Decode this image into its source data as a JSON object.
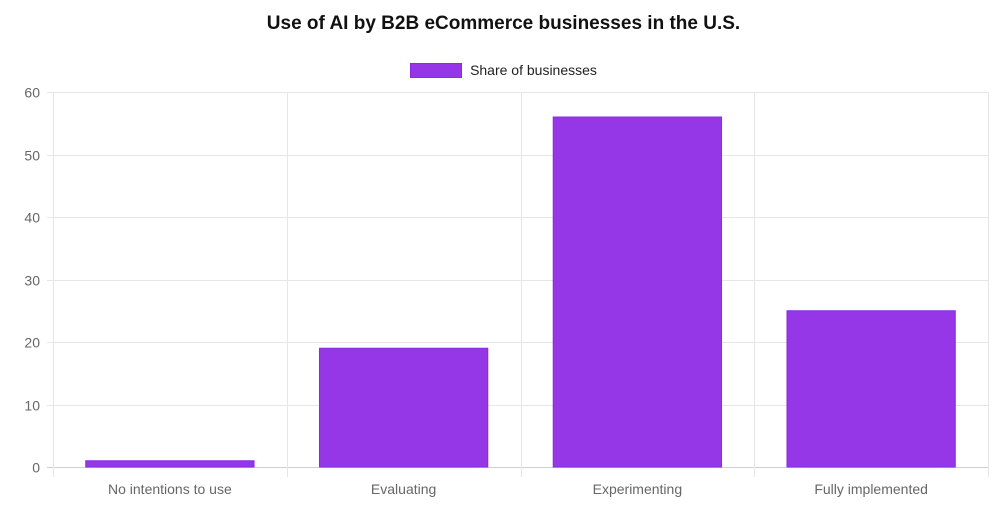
{
  "chart_data": {
    "type": "bar",
    "title": "Use of AI by B2B eCommerce businesses in the U.S.",
    "categories": [
      "No intentions to use",
      "Evaluating",
      "Experimenting",
      "Fully implemented"
    ],
    "series": [
      {
        "name": "Share of businesses",
        "values": [
          1,
          19,
          56,
          25
        ],
        "color": "#9537e6"
      }
    ],
    "ylim": [
      0,
      60
    ],
    "yticks": [
      "0",
      "10",
      "20",
      "30",
      "40",
      "50",
      "60"
    ],
    "grid": true,
    "legend_position": "top-center"
  }
}
